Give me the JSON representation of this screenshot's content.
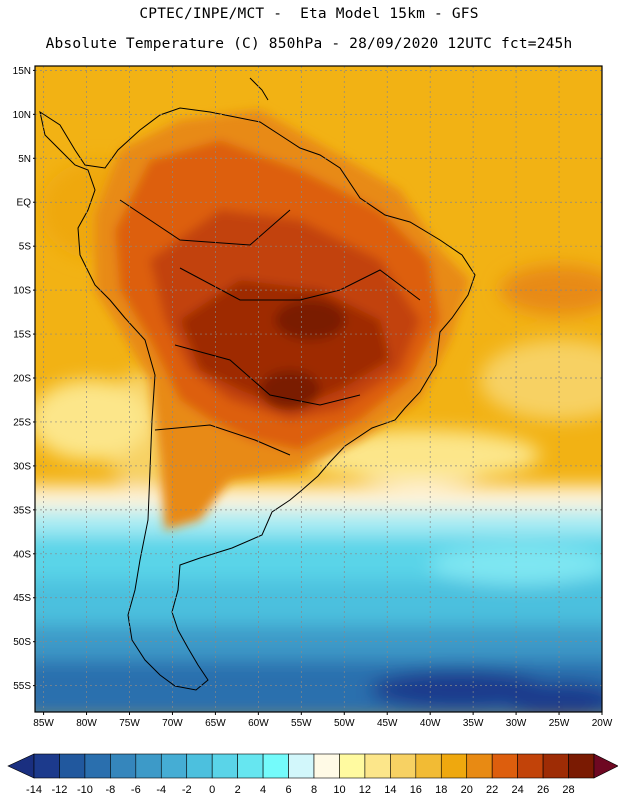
{
  "header": {
    "line1": "CPTEC/INPE/MCT -  Eta Model 15km - GFS",
    "line2": "Absolute Temperature (C) 850hPa - 28/09/2020 12UTC fct=245h"
  },
  "map": {
    "lat_labels": [
      "15N",
      "10N",
      "5N",
      "EQ",
      "5S",
      "10S",
      "15S",
      "20S",
      "25S",
      "30S",
      "35S",
      "40S",
      "45S",
      "50S",
      "55S"
    ],
    "lon_labels": [
      "85W",
      "80W",
      "75W",
      "70W",
      "65W",
      "60W",
      "55W",
      "50W",
      "45W",
      "40W",
      "35W",
      "30W",
      "25W",
      "20W"
    ],
    "lat_range": [
      15.5,
      -58
    ],
    "lon_range": [
      -86,
      -20
    ],
    "grid": true,
    "projection": "lat-lon"
  },
  "colorbar": {
    "labels": [
      "-14",
      "-12",
      "-10",
      "-8",
      "-6",
      "-4",
      "-2",
      "0",
      "2",
      "4",
      "6",
      "8",
      "10",
      "12",
      "14",
      "16",
      "18",
      "20",
      "22",
      "24",
      "26",
      "28"
    ],
    "colors": [
      "#1c3a8c",
      "#21589e",
      "#2a6fae",
      "#3586bc",
      "#3d9ac8",
      "#45add4",
      "#4cc0de",
      "#5ad4e8",
      "#66e6f0",
      "#74fbfb",
      "#d2f7fb",
      "#fffae6",
      "#fffaa0",
      "#fce68a",
      "#f7d163",
      "#f2bb34",
      "#efa80e",
      "#e88a13",
      "#dd5e0d",
      "#c24309",
      "#9e2c05",
      "#7a1a02"
    ],
    "extend_colors": {
      "low": "#1a2f80",
      "high": "#6e0822"
    }
  }
}
